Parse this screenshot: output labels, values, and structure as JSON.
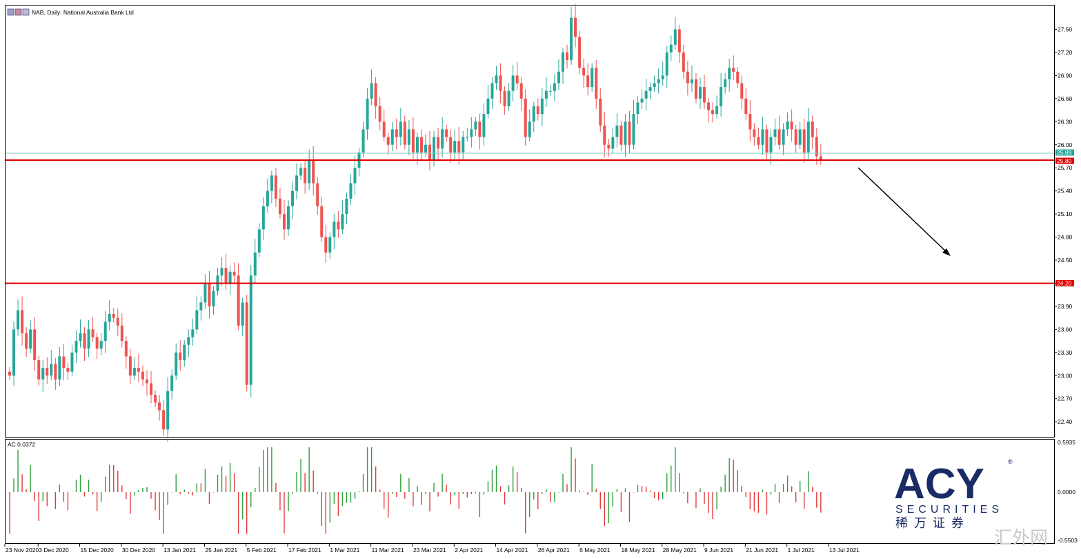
{
  "window": {
    "title": "NAB, Daily:  National Australia Bank Ltd"
  },
  "price_axis": {
    "ticks": [
      "27.50",
      "27.20",
      "26.90",
      "26.60",
      "26.30",
      "26.00",
      "25.70",
      "25.40",
      "25.10",
      "24.80",
      "24.50",
      "24.20",
      "23.90",
      "23.60",
      "23.30",
      "23.00",
      "22.70",
      "22.40"
    ],
    "tick_values": [
      27.5,
      27.2,
      26.9,
      26.6,
      26.3,
      26.0,
      25.7,
      25.4,
      25.1,
      24.8,
      24.5,
      24.2,
      23.9,
      23.6,
      23.3,
      23.0,
      22.7,
      22.4
    ]
  },
  "indicator": {
    "label": "AC 0.0372",
    "axis_ticks": [
      "0.5935",
      "0.0000",
      "-0.5503"
    ]
  },
  "price_tags": {
    "bid": "25.89",
    "level_upper": "25.80",
    "level_lower": "24.20"
  },
  "date_axis": {
    "labels": [
      "23 Nov 2020",
      "3 Dec 2020",
      "15 Dec 2020",
      "30 Dec 2020",
      "13 Jan 2021",
      "25 Jan 2021",
      "5 Feb 2021",
      "17 Feb 2021",
      "1 Mar 2021",
      "11 Mar 2021",
      "23 Mar 2021",
      "2 Apr 2021",
      "14 Apr 2021",
      "26 Apr 2021",
      "6 May 2021",
      "18 May 2021",
      "28 May 2021",
      "9 Jun 2021",
      "21 Jun 2021",
      "1 Jul 2021",
      "13 Jul 2021"
    ],
    "label_bars": [
      0,
      8,
      18,
      28,
      38,
      48,
      58,
      68,
      78,
      88,
      98,
      108,
      118,
      128,
      138,
      148,
      158,
      168,
      178,
      188,
      198
    ]
  },
  "colors": {
    "bull": "#26a69a",
    "bear": "#ef5350",
    "level_line": "#e00000",
    "bid_line": "#7fcdc4",
    "ac_up": "#2e9e3a",
    "ac_down": "#e23a3a",
    "logo": "#1a2b66"
  },
  "logo": {
    "brand": "ACY",
    "registered": "®",
    "securities": "SECURITIES",
    "chinese": "稀 万 证 券"
  },
  "watermark": {
    "text": "汇外网"
  },
  "chart_data": {
    "type": "candlestick",
    "symbol": "NAB",
    "timeframe": "Daily",
    "ylim": [
      22.16,
      27.66
    ],
    "horizontal_lines": [
      25.8,
      24.2
    ],
    "bid": 25.89,
    "closes": [
      23.0,
      23.6,
      23.85,
      23.55,
      23.35,
      23.6,
      23.2,
      22.95,
      23.1,
      23.0,
      23.15,
      22.95,
      23.25,
      23.1,
      23.05,
      23.3,
      23.45,
      23.55,
      23.35,
      23.6,
      23.5,
      23.35,
      23.45,
      23.7,
      23.8,
      23.75,
      23.65,
      23.45,
      23.25,
      23.0,
      23.1,
      23.05,
      22.95,
      22.9,
      22.75,
      22.65,
      22.55,
      22.3,
      22.8,
      23.0,
      23.3,
      23.2,
      23.4,
      23.5,
      23.6,
      23.85,
      23.95,
      24.2,
      23.9,
      24.1,
      24.3,
      24.4,
      24.2,
      24.35,
      24.3,
      23.65,
      23.95,
      22.88,
      24.3,
      24.6,
      24.9,
      25.2,
      25.4,
      25.6,
      25.3,
      25.1,
      24.9,
      25.2,
      25.4,
      25.6,
      25.7,
      25.5,
      25.8,
      25.5,
      25.2,
      24.8,
      24.6,
      24.8,
      25.0,
      24.9,
      25.1,
      25.3,
      25.5,
      25.7,
      25.9,
      26.2,
      26.6,
      26.8,
      26.5,
      26.3,
      26.1,
      26.0,
      26.2,
      26.1,
      26.3,
      26.0,
      26.2,
      25.9,
      26.1,
      25.9,
      26.0,
      25.8,
      26.1,
      25.95,
      26.2,
      26.1,
      25.9,
      26.05,
      25.9,
      26.1,
      26.1,
      26.2,
      26.3,
      26.1,
      26.4,
      26.6,
      26.8,
      26.9,
      26.7,
      26.5,
      26.7,
      26.9,
      26.8,
      26.6,
      26.1,
      26.3,
      26.5,
      26.4,
      26.6,
      26.7,
      26.7,
      26.8,
      26.95,
      27.2,
      27.1,
      27.65,
      27.4,
      27.0,
      26.9,
      26.75,
      27.0,
      26.6,
      26.25,
      26.0,
      25.95,
      26.1,
      26.25,
      26.0,
      26.3,
      26.0,
      26.4,
      26.55,
      26.6,
      26.7,
      26.75,
      26.8,
      26.85,
      26.9,
      27.2,
      27.3,
      27.5,
      27.2,
      26.95,
      26.8,
      26.85,
      26.6,
      26.75,
      26.55,
      26.45,
      26.4,
      26.5,
      26.75,
      26.85,
      27.0,
      26.95,
      26.8,
      26.6,
      26.4,
      26.2,
      26.1,
      26.0,
      26.2,
      25.9,
      26.1,
      26.2,
      26.0,
      26.2,
      26.3,
      26.2,
      26.0,
      26.2,
      25.9,
      26.3,
      26.1,
      25.85,
      25.8
    ]
  }
}
